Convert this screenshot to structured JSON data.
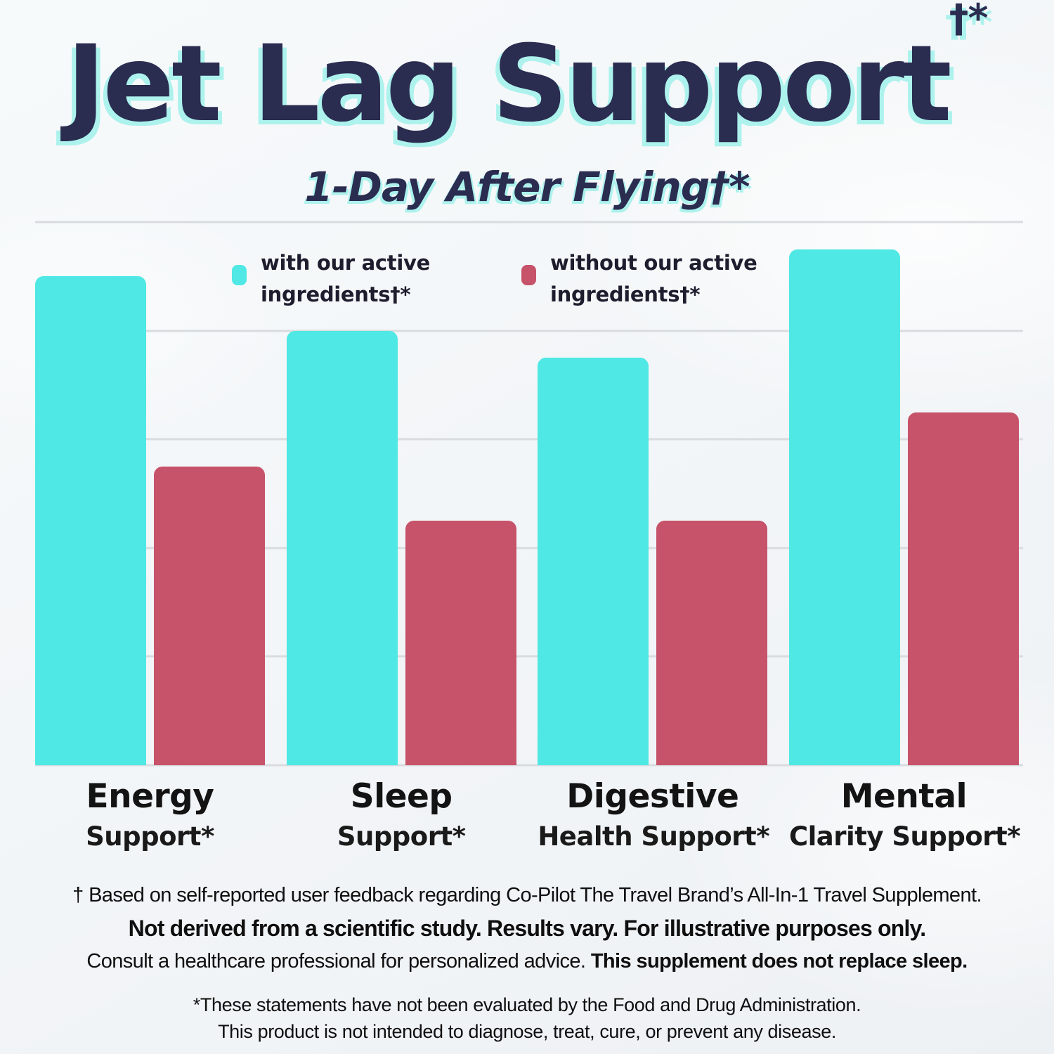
{
  "header": {
    "title": "Jet Lag Support",
    "title_sup": "†*",
    "subtitle": "1-Day After Flying†*"
  },
  "legend": {
    "with": {
      "line1": "with our active",
      "line2": "ingredients†*"
    },
    "without": {
      "line1": "without our active",
      "line2": "ingredients†*"
    }
  },
  "chart_data": {
    "type": "bar",
    "title": "Jet Lag Support†*",
    "subtitle": "1-Day After Flying†*",
    "categories": [
      "Energy Support*",
      "Sleep Support*",
      "Digestive Health Support*",
      "Mental Clarity Support*"
    ],
    "category_label_lines": [
      [
        "Energy",
        "Support*"
      ],
      [
        "Sleep",
        "Support*"
      ],
      [
        "Digestive",
        "Health Support*"
      ],
      [
        "Mental",
        "Clarity Support*"
      ]
    ],
    "series": [
      {
        "name": "with our active ingredients†*",
        "color": "#4FE8E4",
        "values": [
          90,
          80,
          75,
          95
        ]
      },
      {
        "name": "without our active ingredients†*",
        "color": "#C6536A",
        "values": [
          55,
          45,
          45,
          65
        ]
      }
    ],
    "ylim": [
      0,
      100
    ],
    "gridline_step": 20,
    "grid": "horizontal gridlines only, no numeric axis labels shown",
    "legend_position": "top inside plot area",
    "xlabel": "",
    "ylabel": ""
  },
  "footnotes": {
    "line1": "† Based on self-reported user feedback regarding Co-Pilot The Travel Brand’s All-In-1 Travel Supplement.",
    "line2": "Not derived from a scientific study. Results vary. For illustrative purposes only.",
    "line3_regular": "Consult a healthcare professional for personalized advice. ",
    "line3_bold": "This supplement does not replace sleep.",
    "fda_line1": "*These statements have not been evaluated by the Food and Drug Administration.",
    "fda_line2": "This product is not intended to diagnose, treat, cure, or prevent any disease."
  },
  "colors": {
    "accent_cyan": "#4FE8E4",
    "accent_rose": "#C6536A",
    "title_navy": "#2A2C50",
    "title_shadow_cyan": "#ADF2ED",
    "gridline": "#D9DCDF",
    "background": "#F4F7F9",
    "text_dark": "#0F0F0F"
  }
}
